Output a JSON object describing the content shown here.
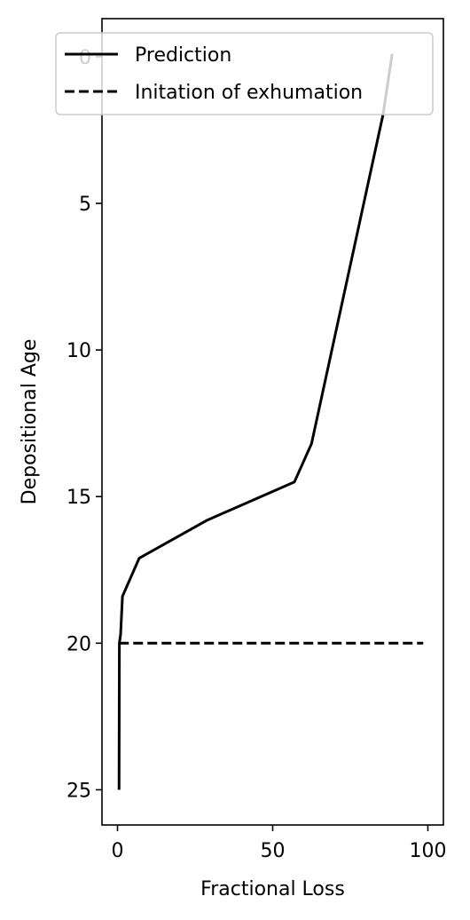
{
  "chart_data": {
    "type": "line",
    "xlabel": "Fractional Loss",
    "ylabel": "Depositional Age",
    "xlim": [
      -5,
      105
    ],
    "ylim": [
      26.2,
      -1.3
    ],
    "y_inverted": true,
    "xticks": [
      0,
      50,
      100
    ],
    "yticks": [
      0,
      5,
      10,
      15,
      20,
      25
    ],
    "grid": false,
    "legend_position": "top",
    "series": [
      {
        "name": "Prediction",
        "style": "solid",
        "color": "#000000",
        "x": [
          0.5,
          0.6,
          1.0,
          1.6,
          7.0,
          29.0,
          57.0,
          62.5,
          85.5,
          88.5
        ],
        "y": [
          25.0,
          20.0,
          19.7,
          18.4,
          17.1,
          15.8,
          14.5,
          13.2,
          2.0,
          -0.1
        ]
      },
      {
        "name": "Initation of exhumation",
        "style": "dashed",
        "color": "#000000",
        "x": [
          0.5,
          98.5
        ],
        "y": [
          20.0,
          20.0
        ]
      }
    ]
  }
}
